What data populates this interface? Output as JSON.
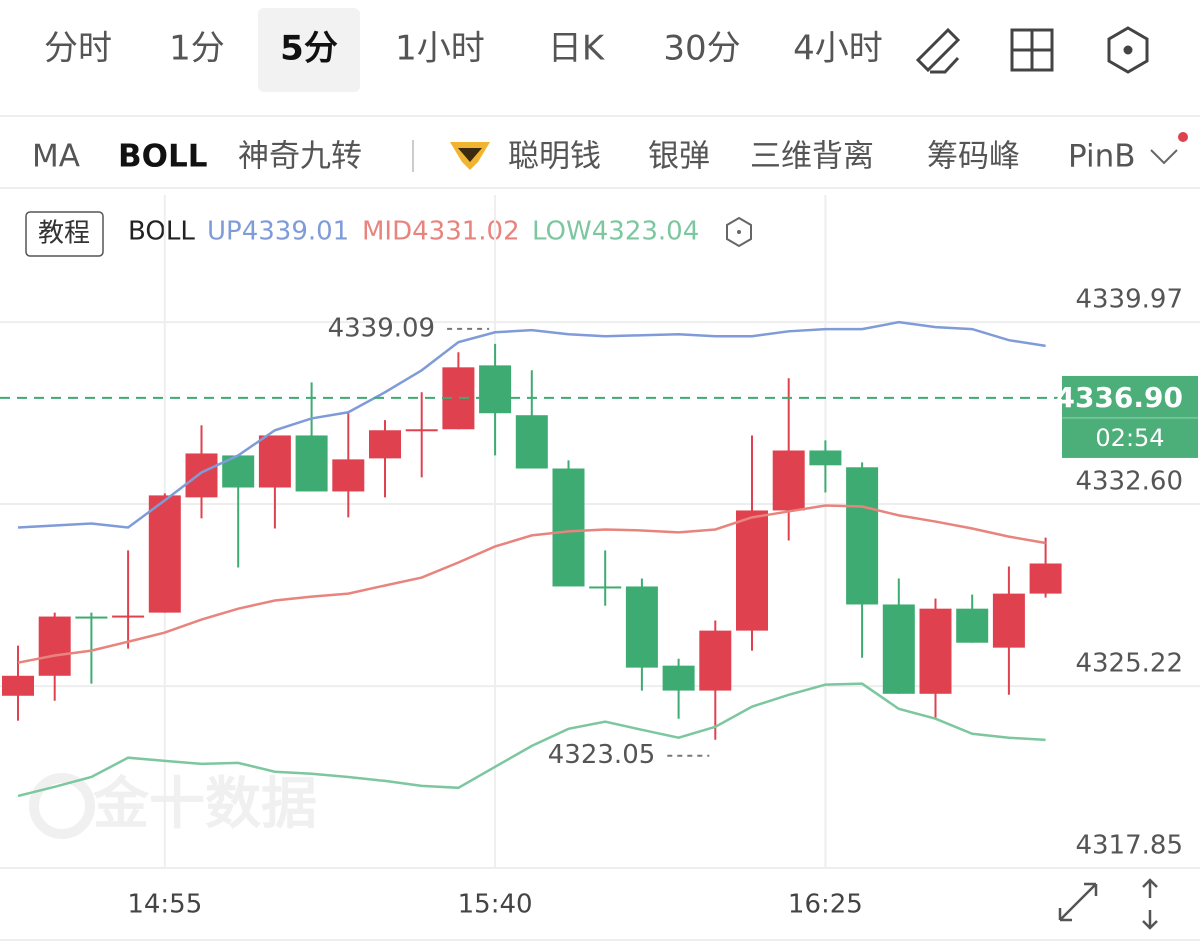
{
  "tabs": {
    "periods": [
      "分时",
      "1分",
      "5分",
      "1小时",
      "日K",
      "30分",
      "4小时"
    ],
    "selected": 2
  },
  "indicators": {
    "items": [
      "MA",
      "BOLL",
      "神奇九转",
      "聪明钱",
      "银弹",
      "三维背离",
      "筹码峰",
      "PinB"
    ],
    "active": 1
  },
  "legend": {
    "button": "教程",
    "name": "BOLL",
    "up": "UP4339.01",
    "mid": "MID4331.02",
    "low": "LOW4323.04"
  },
  "watermark": "金十数据",
  "chart_data": {
    "type": "candlestick",
    "categories": [
      null,
      null,
      null,
      null,
      "14:55",
      null,
      null,
      null,
      null,
      null,
      null,
      null,
      null,
      "15:40",
      null,
      null,
      null,
      null,
      null,
      null,
      null,
      null,
      "16:25",
      null,
      null,
      null,
      null,
      null,
      null
    ],
    "open": [
      4324.83,
      4325.64,
      4328.04,
      4328.0,
      4328.2,
      4332.87,
      4334.57,
      4333.27,
      4335.38,
      4333.11,
      4334.45,
      4335.59,
      4335.63,
      4338.22,
      4336.2,
      4334.04,
      4329.26,
      4329.26,
      4326.05,
      4325.04,
      4327.47,
      4332.34,
      4334.77,
      4334.09,
      4328.53,
      4324.91,
      4328.36,
      4326.78,
      4328.97
    ],
    "high": [
      4326.86,
      4328.2,
      4328.2,
      4330.72,
      4333.03,
      4335.79,
      4334.57,
      4335.38,
      4337.53,
      4336.32,
      4336.0,
      4337.13,
      4338.75,
      4339.09,
      4338.02,
      4334.37,
      4330.72,
      4329.58,
      4326.33,
      4327.88,
      4335.38,
      4337.7,
      4335.18,
      4334.29,
      4329.58,
      4328.77,
      4328.93,
      4330.07,
      4331.24
    ],
    "low": [
      4323.82,
      4324.63,
      4325.32,
      4326.74,
      4328.2,
      4332.02,
      4330.03,
      4331.61,
      4333.11,
      4332.06,
      4332.87,
      4333.68,
      4335.63,
      4334.57,
      4334.04,
      4329.26,
      4328.48,
      4325.04,
      4323.9,
      4323.05,
      4326.66,
      4331.12,
      4333.07,
      4326.37,
      4324.91,
      4323.9,
      4326.98,
      4324.87,
      4328.81
    ],
    "close": [
      4325.64,
      4328.04,
      4328.0,
      4328.08,
      4332.95,
      4334.65,
      4333.27,
      4335.38,
      4333.11,
      4334.41,
      4335.59,
      4335.63,
      4338.14,
      4336.28,
      4334.04,
      4329.26,
      4329.22,
      4325.97,
      4325.04,
      4327.47,
      4332.34,
      4334.77,
      4334.17,
      4328.53,
      4324.91,
      4328.36,
      4326.98,
      4328.97,
      4330.19
    ],
    "up_color": "#e0414f",
    "down_color": "#3dab72",
    "bands": [
      {
        "color": "#7f9bd8",
        "values": [
          4331.65,
          4331.73,
          4331.81,
          4331.65,
          4332.75,
          4333.88,
          4334.57,
          4335.59,
          4336.07,
          4336.32,
          4337.13,
          4338.02,
          4339.16,
          4339.56,
          4339.65,
          4339.48,
          4339.4,
          4339.44,
          4339.48,
          4339.4,
          4339.4,
          4339.6,
          4339.69,
          4339.69,
          4339.97,
          4339.77,
          4339.69,
          4339.24,
          4339.01
        ]
      },
      {
        "color": "#e8847e",
        "values": [
          4326.17,
          4326.46,
          4326.66,
          4327.02,
          4327.39,
          4327.92,
          4328.36,
          4328.69,
          4328.85,
          4328.97,
          4329.3,
          4329.62,
          4330.23,
          4330.88,
          4331.33,
          4331.49,
          4331.57,
          4331.53,
          4331.45,
          4331.57,
          4332.06,
          4332.3,
          4332.54,
          4332.5,
          4332.14,
          4331.89,
          4331.61,
          4331.28,
          4331.02
        ]
      },
      {
        "color": "#7cc79f",
        "values": [
          4320.77,
          4321.14,
          4321.54,
          4322.32,
          4322.19,
          4322.07,
          4322.11,
          4321.75,
          4321.67,
          4321.54,
          4321.38,
          4321.18,
          4321.1,
          4321.95,
          4322.8,
          4323.49,
          4323.78,
          4323.45,
          4323.13,
          4323.57,
          4324.39,
          4324.87,
          4325.28,
          4325.32,
          4324.3,
          4323.9,
          4323.29,
          4323.13,
          4323.04
        ]
      }
    ],
    "ylim": [
      4317.85,
      4342.49
    ],
    "yticks": [
      4317.85,
      4325.22,
      {
        "value": 4332.6,
        "label": "4332.60"
      },
      4339.97
    ],
    "grid": true,
    "current_price": {
      "value": 4336.9,
      "label": "4336.90"
    },
    "countdown": "02:54",
    "high_annotation": 4339.09,
    "low_annotation": 4323.05
  }
}
